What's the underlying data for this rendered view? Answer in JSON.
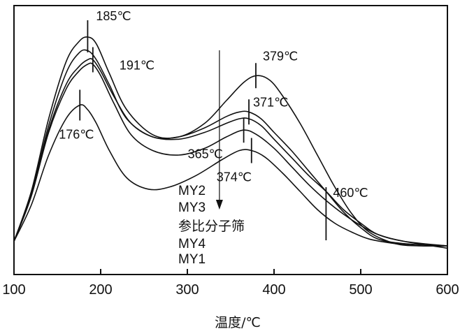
{
  "chart_data": {
    "type": "line",
    "title": "",
    "xlabel": "温度/℃",
    "ylabel": "",
    "xlim": [
      100,
      600
    ],
    "ylim": [
      0,
      1
    ],
    "x_ticks": [
      "100",
      "200",
      "300",
      "400",
      "500",
      "600"
    ],
    "y_ticks_shown": false,
    "grid": false,
    "legend": "inline labels at center of plot",
    "series": [
      {
        "name": "MY2",
        "x": [
          100,
          120,
          140,
          160,
          175,
          185,
          195,
          210,
          230,
          260,
          290,
          320,
          345,
          365,
          380,
          395,
          410,
          430,
          450,
          470,
          490,
          510,
          540,
          570,
          600
        ],
        "y": [
          0.06,
          0.28,
          0.6,
          0.85,
          0.94,
          0.96,
          0.93,
          0.8,
          0.64,
          0.53,
          0.52,
          0.58,
          0.68,
          0.76,
          0.79,
          0.77,
          0.7,
          0.58,
          0.44,
          0.3,
          0.18,
          0.1,
          0.05,
          0.04,
          0.04
        ]
      },
      {
        "name": "MY3",
        "x": [
          100,
          120,
          140,
          160,
          175,
          185,
          195,
          210,
          230,
          260,
          290,
          320,
          345,
          360,
          371,
          385,
          400,
          420,
          440,
          460,
          480,
          500,
          520,
          550,
          600
        ],
        "y": [
          0.06,
          0.27,
          0.57,
          0.8,
          0.89,
          0.9,
          0.86,
          0.75,
          0.6,
          0.52,
          0.52,
          0.56,
          0.61,
          0.63,
          0.63,
          0.6,
          0.54,
          0.46,
          0.37,
          0.28,
          0.19,
          0.12,
          0.07,
          0.05,
          0.04
        ]
      },
      {
        "name": "参比分子筛",
        "x": [
          100,
          120,
          140,
          160,
          175,
          185,
          191,
          200,
          215,
          235,
          260,
          290,
          320,
          345,
          360,
          371,
          385,
          400,
          420,
          440,
          460,
          480,
          500,
          520,
          550,
          600
        ],
        "y": [
          0.06,
          0.26,
          0.55,
          0.75,
          0.83,
          0.86,
          0.86,
          0.81,
          0.7,
          0.58,
          0.52,
          0.51,
          0.54,
          0.58,
          0.6,
          0.6,
          0.57,
          0.51,
          0.43,
          0.35,
          0.28,
          0.2,
          0.14,
          0.09,
          0.06,
          0.03
        ]
      },
      {
        "name": "MY4",
        "x": [
          100,
          120,
          140,
          160,
          175,
          185,
          191,
          200,
          215,
          235,
          260,
          290,
          320,
          345,
          365,
          380,
          400,
          420,
          440,
          460,
          480,
          500,
          520,
          550,
          600
        ],
        "y": [
          0.06,
          0.26,
          0.54,
          0.73,
          0.81,
          0.84,
          0.84,
          0.79,
          0.67,
          0.53,
          0.46,
          0.44,
          0.47,
          0.52,
          0.55,
          0.53,
          0.47,
          0.39,
          0.31,
          0.24,
          0.18,
          0.13,
          0.09,
          0.06,
          0.04
        ]
      },
      {
        "name": "MY1",
        "x": [
          100,
          120,
          140,
          160,
          176,
          185,
          195,
          210,
          230,
          255,
          280,
          310,
          340,
          360,
          374,
          390,
          410,
          430,
          450,
          470,
          490,
          510,
          540,
          570,
          600
        ],
        "y": [
          0.06,
          0.22,
          0.44,
          0.6,
          0.66,
          0.64,
          0.58,
          0.46,
          0.34,
          0.29,
          0.3,
          0.35,
          0.42,
          0.46,
          0.46,
          0.43,
          0.36,
          0.28,
          0.2,
          0.14,
          0.1,
          0.07,
          0.05,
          0.04,
          0.04
        ]
      }
    ],
    "peak_markers": [
      {
        "x": 185,
        "y": 0.96,
        "label": "185℃"
      },
      {
        "x": 191,
        "y": 0.86,
        "label": "191℃"
      },
      {
        "x": 176,
        "y": 0.66,
        "label": "176℃"
      },
      {
        "x": 379,
        "y": 0.79,
        "label": "379℃"
      },
      {
        "x": 371,
        "y": 0.63,
        "label": "371℃"
      },
      {
        "x": 365,
        "y": 0.55,
        "label": "365℃"
      },
      {
        "x": 374,
        "y": 0.46,
        "label": "374℃"
      },
      {
        "x": 460,
        "y": 0.28,
        "label": "460℃"
      }
    ],
    "series_labels": [
      "MY2",
      "MY3",
      "参比分子筛",
      "MY4",
      "MY1"
    ],
    "arrow_x": 337
  }
}
